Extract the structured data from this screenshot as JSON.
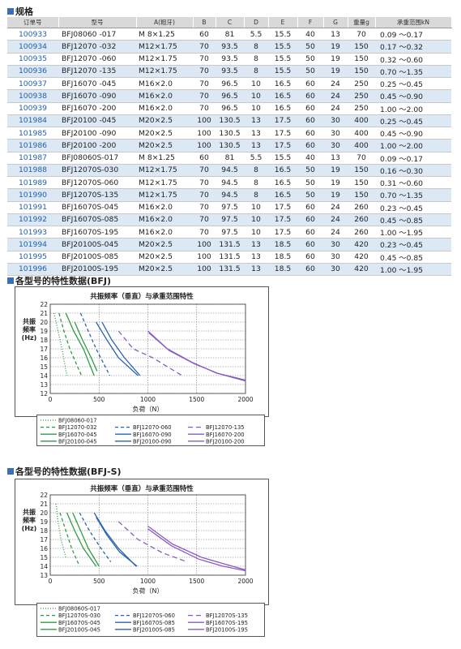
{
  "spec_section": {
    "title": "规格"
  },
  "table": {
    "headers": [
      "订单号",
      "型号",
      "A(粗牙)",
      "B",
      "C",
      "D",
      "E",
      "F",
      "G",
      "重量g",
      "承重范围kN"
    ],
    "rows": [
      [
        "100933",
        "BFJ08060 -017",
        "M  8×1.25",
        "60",
        "81",
        "5.5",
        "15.5",
        "40",
        "13",
        "70",
        "0.09 ～0.17"
      ],
      [
        "100934",
        "BFJ12070 -032",
        "M12×1.75",
        "70",
        "93.5",
        "8",
        "15.5",
        "50",
        "19",
        "150",
        "0.17 ～0.32"
      ],
      [
        "100935",
        "BFJ12070 -060",
        "M12×1.75",
        "70",
        "93.5",
        "8",
        "15.5",
        "50",
        "19",
        "150",
        "0.32 ～0.60"
      ],
      [
        "100936",
        "BFJ12070 -135",
        "M12×1.75",
        "70",
        "93.5",
        "8",
        "15.5",
        "50",
        "19",
        "150",
        "0.70 ～1.35"
      ],
      [
        "100937",
        "BFJ16070 -045",
        "M16×2.0",
        "70",
        "96.5",
        "10",
        "16.5",
        "60",
        "24",
        "250",
        "0.25 ～0.45"
      ],
      [
        "100938",
        "BFJ16070 -090",
        "M16×2.0",
        "70",
        "96.5",
        "10",
        "16.5",
        "60",
        "24",
        "250",
        "0.45 ～0.90"
      ],
      [
        "100939",
        "BFJ16070 -200",
        "M16×2.0",
        "70",
        "96.5",
        "10",
        "16.5",
        "60",
        "24",
        "250",
        "1.00 ～2.00"
      ],
      [
        "101984",
        "BFJ20100 -045",
        "M20×2.5",
        "100",
        "130.5",
        "13",
        "17.5",
        "60",
        "30",
        "400",
        "0.25 ～0.45"
      ],
      [
        "101985",
        "BFJ20100 -090",
        "M20×2.5",
        "100",
        "130.5",
        "13",
        "17.5",
        "60",
        "30",
        "400",
        "0.45 ～0.90"
      ],
      [
        "101986",
        "BFJ20100 -200",
        "M20×2.5",
        "100",
        "130.5",
        "13",
        "17.5",
        "60",
        "30",
        "400",
        "1.00 ～2.00"
      ],
      [
        "101987",
        "BFJ08060S-017",
        "M  8×1.25",
        "60",
        "81",
        "5.5",
        "15.5",
        "40",
        "13",
        "70",
        "0.09 ～0.17"
      ],
      [
        "101988",
        "BFJ12070S-030",
        "M12×1.75",
        "70",
        "94.5",
        "8",
        "16.5",
        "50",
        "19",
        "150",
        "0.16 ～0.30"
      ],
      [
        "101989",
        "BFJ12070S-060",
        "M12×1.75",
        "70",
        "94.5",
        "8",
        "16.5",
        "50",
        "19",
        "150",
        "0.31 ～0.60"
      ],
      [
        "101990",
        "BFJ12070S-135",
        "M12×1.75",
        "70",
        "94.5",
        "8",
        "16.5",
        "50",
        "19",
        "150",
        "0.70 ～1.35"
      ],
      [
        "101991",
        "BFJ16070S-045",
        "M16×2.0",
        "70",
        "97.5",
        "10",
        "17.5",
        "60",
        "24",
        "260",
        "0.23 ～0.45"
      ],
      [
        "101992",
        "BFJ16070S-085",
        "M16×2.0",
        "70",
        "97.5",
        "10",
        "17.5",
        "60",
        "24",
        "260",
        "0.45 ～0.85"
      ],
      [
        "101993",
        "BFJ16070S-195",
        "M16×2.0",
        "70",
        "97.5",
        "10",
        "17.5",
        "60",
        "24",
        "260",
        "1.00 ～1.95"
      ],
      [
        "101994",
        "BFJ20100S-045",
        "M20×2.5",
        "100",
        "131.5",
        "13",
        "18.5",
        "60",
        "30",
        "420",
        "0.23 ～0.45"
      ],
      [
        "101995",
        "BFJ20100S-085",
        "M20×2.5",
        "100",
        "131.5",
        "13",
        "18.5",
        "60",
        "30",
        "420",
        "0.45 ～0.85"
      ],
      [
        "101996",
        "BFJ20100S-195",
        "M20×2.5",
        "100",
        "131.5",
        "13",
        "18.5",
        "60",
        "30",
        "420",
        "1.00 ～1.95"
      ]
    ]
  },
  "section_bfj": {
    "title": "各型号的特性数据(BFJ)"
  },
  "section_bfjs": {
    "title": "各型号的特性数据(BFJ-S)"
  },
  "chart_data": [
    {
      "type": "line",
      "title": "共振频率（垂直）与承重范围特性",
      "xlabel": "负荷（N）",
      "ylabel": "共振频率(Hz)",
      "xlim": [
        0,
        2000
      ],
      "ylim": [
        12,
        22
      ],
      "xticks": [
        "0",
        "500",
        "1000",
        "1500",
        "2000"
      ],
      "yticks": [
        "12",
        "13",
        "14",
        "15",
        "16",
        "17",
        "18",
        "19",
        "20",
        "21",
        "22"
      ],
      "grid": true,
      "series": [
        {
          "name": "BFJ08060-017",
          "color": "#2e9b44",
          "dash": "1,2",
          "x": [
            40,
            80,
            120,
            170
          ],
          "y": [
            21,
            19,
            17,
            14
          ]
        },
        {
          "name": "BFJ12070-032",
          "color": "#2e9b44",
          "dash": "4,3",
          "x": [
            90,
            140,
            200,
            320
          ],
          "y": [
            21,
            19,
            17,
            14
          ]
        },
        {
          "name": "BFJ12070-060",
          "color": "#2b62b0",
          "dash": "4,3",
          "x": [
            310,
            390,
            470,
            610
          ],
          "y": [
            21,
            19,
            17,
            14
          ]
        },
        {
          "name": "BFJ12070-135",
          "color": "#8a5cc0",
          "dash": "6,4",
          "x": [
            700,
            850,
            1050,
            1350
          ],
          "y": [
            19,
            17,
            16,
            14
          ]
        },
        {
          "name": "BFJ16070-045",
          "color": "#2e9b44",
          "dash": "",
          "x": [
            160,
            240,
            340,
            450
          ],
          "y": [
            21,
            19,
            17,
            14
          ]
        },
        {
          "name": "BFJ16070-090",
          "color": "#2b62b0",
          "dash": "",
          "x": [
            470,
            580,
            700,
            900
          ],
          "y": [
            20,
            18,
            16,
            14
          ]
        },
        {
          "name": "BFJ20100-045",
          "color": "#2e9b44",
          "dash": "",
          "x": [
            250,
            330,
            420,
            480
          ],
          "y": [
            20,
            18,
            16,
            14.5
          ]
        },
        {
          "name": "BFJ20100-090",
          "color": "#2b62b0",
          "dash": "",
          "x": [
            530,
            630,
            760,
            920
          ],
          "y": [
            20,
            18,
            16,
            14
          ]
        },
        {
          "name": "BFJ16070-200",
          "color": "#8a5cc0",
          "dash": "",
          "x": [
            1000,
            1200,
            1450,
            1700,
            2000
          ],
          "y": [
            19,
            17,
            15.5,
            14.3,
            13.5
          ]
        },
        {
          "name": "BFJ20100-200",
          "color": "#8a5cc0",
          "dash": "",
          "x": [
            1010,
            1220,
            1480,
            1730,
            2000
          ],
          "y": [
            18.8,
            16.8,
            15.3,
            14.2,
            13.4
          ]
        }
      ]
    },
    {
      "type": "line",
      "title": "共振频率（垂直）与承重范围特性",
      "xlabel": "负荷（N）",
      "ylabel": "共振频率(Hz)",
      "xlim": [
        0,
        2000
      ],
      "ylim": [
        13,
        22
      ],
      "xticks": [
        "0",
        "500",
        "1000",
        "1500",
        "2000"
      ],
      "yticks": [
        "13",
        "14",
        "15",
        "16",
        "17",
        "18",
        "19",
        "20",
        "21",
        "22"
      ],
      "grid": true,
      "series": [
        {
          "name": "BFJ08060S-017",
          "color": "#2e9b44",
          "dash": "1,2",
          "x": [
            60,
            80,
            110,
            160
          ],
          "y": [
            21,
            19,
            17,
            15
          ]
        },
        {
          "name": "BFJ12070S-030",
          "color": "#2e9b44",
          "dash": "4,3",
          "x": [
            100,
            160,
            220,
            300
          ],
          "y": [
            20,
            18,
            16,
            14
          ]
        },
        {
          "name": "BFJ12070S-060",
          "color": "#2b62b0",
          "dash": "4,3",
          "x": [
            300,
            400,
            520,
            620
          ],
          "y": [
            20,
            18,
            16,
            14.5
          ]
        },
        {
          "name": "BFJ12070S-135",
          "color": "#8a5cc0",
          "dash": "6,4",
          "x": [
            700,
            900,
            1150,
            1400
          ],
          "y": [
            19,
            17,
            15.5,
            14.5
          ]
        },
        {
          "name": "BFJ16070S-045",
          "color": "#2e9b44",
          "dash": "",
          "x": [
            170,
            250,
            340,
            470
          ],
          "y": [
            20,
            18,
            16,
            14
          ]
        },
        {
          "name": "BFJ16070S-085",
          "color": "#2b62b0",
          "dash": "",
          "x": [
            450,
            560,
            700,
            880
          ],
          "y": [
            20,
            18,
            16,
            14
          ]
        },
        {
          "name": "BFJ20100S-045",
          "color": "#2e9b44",
          "dash": "",
          "x": [
            230,
            310,
            390,
            500
          ],
          "y": [
            20,
            18,
            16,
            14
          ]
        },
        {
          "name": "BFJ20100S-085",
          "color": "#2b62b0",
          "dash": "",
          "x": [
            470,
            580,
            710,
            890
          ],
          "y": [
            19.5,
            17.5,
            15.6,
            14
          ]
        },
        {
          "name": "BFJ16070S-195",
          "color": "#8a5cc0",
          "dash": "",
          "x": [
            1000,
            1250,
            1550,
            1800,
            2000
          ],
          "y": [
            18.5,
            16.5,
            15,
            14.2,
            13.6
          ]
        },
        {
          "name": "BFJ20100S-195",
          "color": "#8a5cc0",
          "dash": "",
          "x": [
            1000,
            1240,
            1520,
            1770,
            2000
          ],
          "y": [
            18.2,
            16.3,
            14.8,
            14,
            13.5
          ]
        }
      ]
    }
  ]
}
